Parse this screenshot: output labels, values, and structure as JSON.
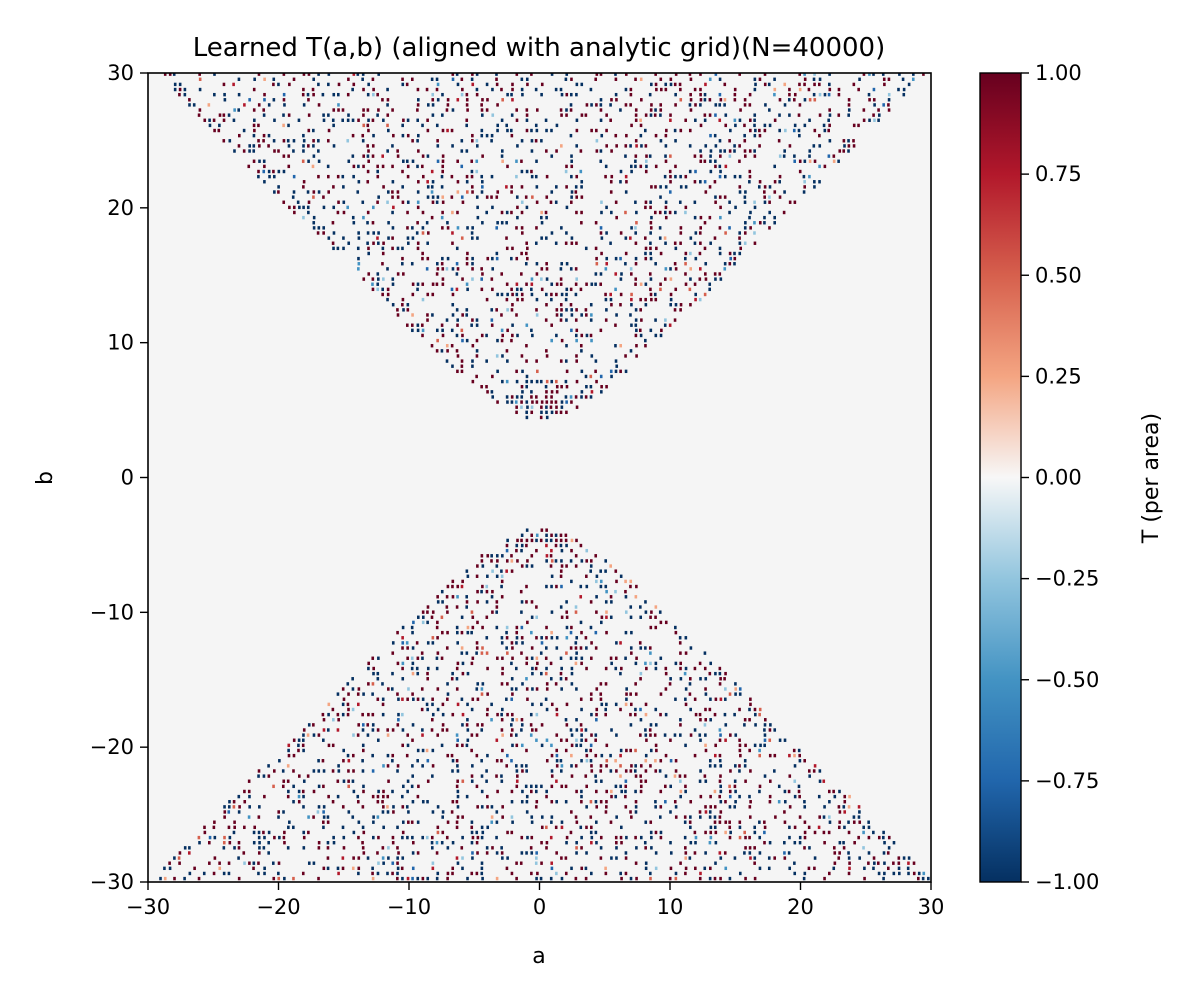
{
  "chart_data": {
    "type": "heatmap",
    "title": "Learned T(a,b) (aligned with analytic grid)(N=40000)",
    "xlabel": "a",
    "ylabel": "b",
    "xlim": [
      -30,
      30
    ],
    "ylim": [
      -30,
      30
    ],
    "x_ticks": [
      -30,
      -20,
      -10,
      0,
      10,
      20,
      30
    ],
    "x_tick_labels": [
      "−30",
      "−20",
      "−10",
      "0",
      "10",
      "20",
      "30"
    ],
    "y_ticks": [
      -30,
      -20,
      -10,
      0,
      10,
      20,
      30
    ],
    "y_tick_labels": [
      "−30",
      "−20",
      "−10",
      "0",
      "10",
      "20",
      "30"
    ],
    "grid": false,
    "background_value": 0.0,
    "region": {
      "description_values": "nonzero values occupy |b| >= sqrt(a^2 + 16) (hyperbola-like double wedge), values mostly near +1 or -1",
      "boundary": "b^2 - a^2 = 16",
      "value_range": [
        -1.0,
        1.0
      ]
    },
    "colorbar": {
      "label": "T (per area)",
      "min": -1.0,
      "max": 1.0,
      "ticks": [
        1.0,
        0.75,
        0.5,
        0.25,
        0.0,
        -0.25,
        -0.5,
        -0.75,
        -1.0
      ],
      "tick_labels": [
        "1.00",
        "0.75",
        "0.50",
        "0.25",
        "0.00",
        "−0.25",
        "−0.50",
        "−0.75",
        "−1.00"
      ],
      "colormap": "RdBu_r",
      "colors": {
        "low": "#053061",
        "mid": "#f7f7f7",
        "high": "#67001f"
      }
    }
  }
}
